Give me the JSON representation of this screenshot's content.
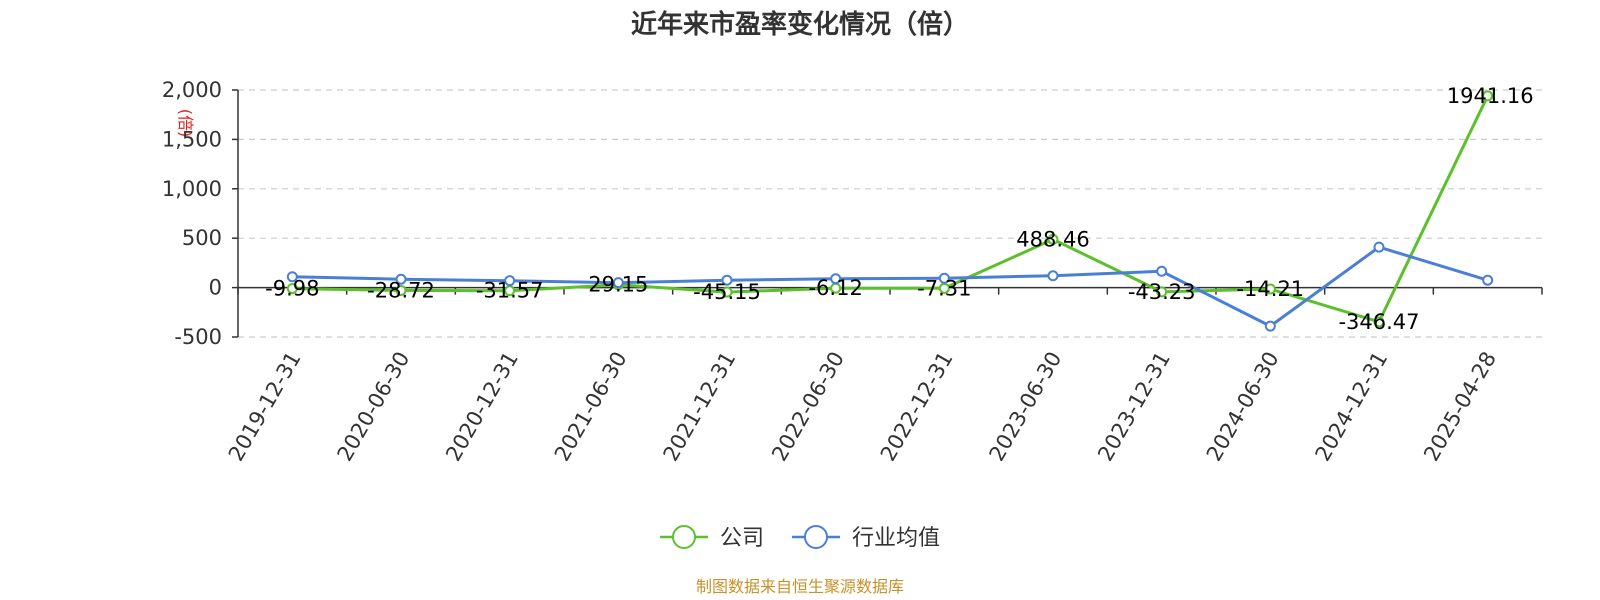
{
  "chart_data": {
    "type": "line",
    "title": "近年来市盈率变化情况（倍）",
    "ylabel": "(倍)",
    "xlabel": "",
    "categories": [
      "2019-12-31",
      "2020-06-30",
      "2020-12-31",
      "2021-06-30",
      "2021-12-31",
      "2022-06-30",
      "2022-12-31",
      "2023-06-30",
      "2023-12-31",
      "2024-06-30",
      "2024-12-31",
      "2025-04-28"
    ],
    "ylim": [
      -500,
      2000
    ],
    "yticks": [
      -500,
      0,
      500,
      1000,
      1500,
      2000
    ],
    "ytick_labels": [
      "-500",
      "0",
      "500",
      "1,000",
      "1,500",
      "2,000"
    ],
    "grid": true,
    "legend_position": "bottom-center",
    "series": [
      {
        "name": "公司",
        "color": "#5cc02c",
        "values": [
          -9.98,
          -28.72,
          -31.57,
          29.15,
          -45.15,
          -6.12,
          -7.31,
          488.46,
          -43.23,
          -14.21,
          -346.47,
          1941.16
        ],
        "labels": [
          "-9.98",
          "-28.72",
          "-31.57",
          "29.15",
          "-45.15",
          "-6.12",
          "-7.31",
          "488.46",
          "-43.23",
          "-14.21",
          "-346.47",
          "1941.16"
        ]
      },
      {
        "name": "行业均值",
        "color": "#4a7fd6",
        "values": [
          110,
          85,
          70,
          50,
          75,
          90,
          95,
          120,
          165,
          -390,
          410,
          75
        ]
      }
    ]
  },
  "source": "制图数据来自恒生聚源数据库"
}
